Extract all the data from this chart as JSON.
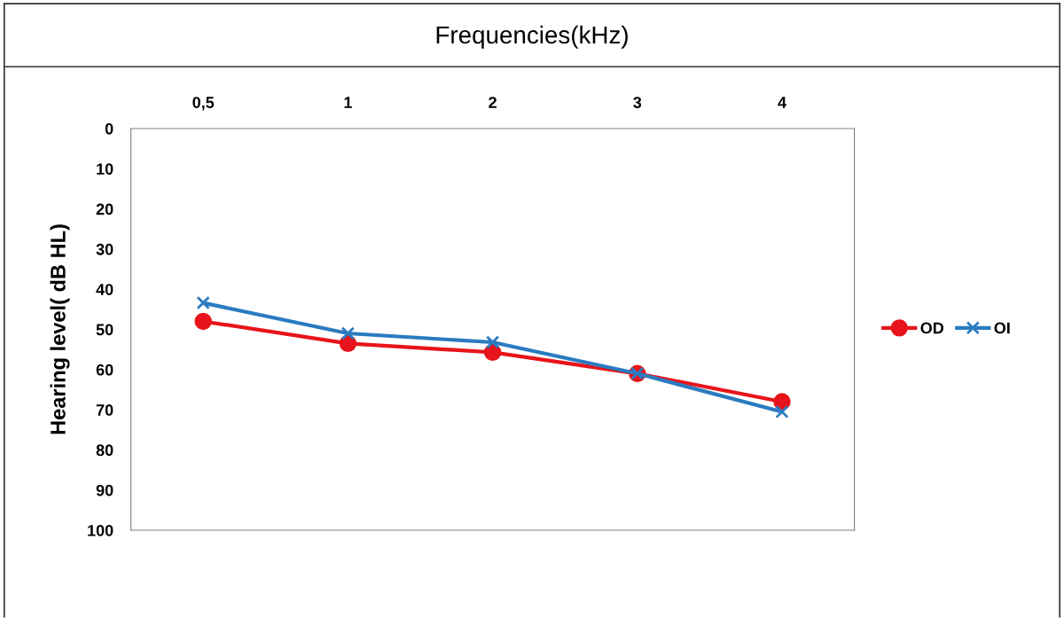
{
  "chart_data": {
    "type": "line",
    "xlabel": "Frequencies(kHz)",
    "ylabel": "Hearing level( dB HL)",
    "categories": [
      "0,5",
      "1",
      "2",
      "3",
      "4"
    ],
    "series": [
      {
        "name": "OD",
        "color": "#e8141b",
        "marker": "circle",
        "values": [
          48,
          53.5,
          55.7,
          61,
          68
        ]
      },
      {
        "name": "OI",
        "color": "#2a7bc0",
        "marker": "cross",
        "values": [
          43.4,
          51,
          53.2,
          61,
          70.5
        ]
      }
    ],
    "ylim": [
      100,
      0
    ],
    "yticks": [
      0,
      10,
      20,
      30,
      40,
      50,
      60,
      70,
      80,
      90,
      100
    ],
    "grid": false,
    "legend": "right",
    "line_style": "solid"
  }
}
